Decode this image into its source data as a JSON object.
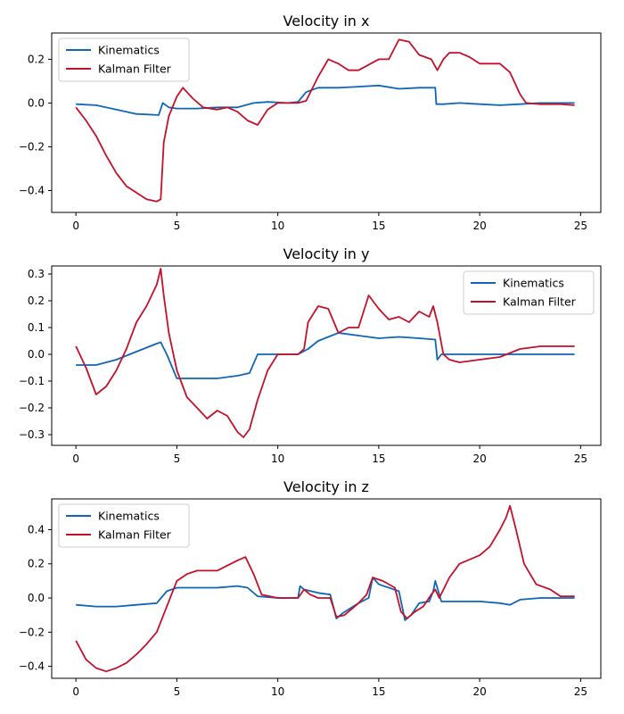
{
  "chart_data": [
    {
      "type": "line",
      "title": "Velocity in x",
      "xlim": [
        -1.2,
        26
      ],
      "ylim": [
        -0.5,
        0.32
      ],
      "xticks": [
        0,
        5,
        10,
        15,
        20,
        25
      ],
      "yticks": [
        -0.4,
        -0.2,
        0.0,
        0.2
      ],
      "ytick_labels": [
        "−0.4",
        "−0.2",
        "0.0",
        "0.2"
      ],
      "legend": "top-left",
      "grid": false,
      "series": [
        {
          "name": "Kinematics",
          "color": "#0f66b8",
          "x": [
            0,
            1,
            2,
            3,
            4.1,
            4.3,
            4.6,
            5,
            6,
            7,
            8,
            8.8,
            9.5,
            10.5,
            11,
            11.4,
            12,
            13,
            14,
            15,
            16,
            17,
            17.8,
            17.85,
            18.2,
            19,
            20,
            21,
            22,
            23,
            24,
            24.7
          ],
          "y": [
            -0.005,
            -0.01,
            -0.03,
            -0.05,
            -0.055,
            0.0,
            -0.02,
            -0.025,
            -0.025,
            -0.02,
            -0.02,
            0.0,
            0.005,
            0.0,
            0.005,
            0.05,
            0.07,
            0.07,
            0.075,
            0.08,
            0.065,
            0.07,
            0.07,
            -0.005,
            -0.005,
            0.0,
            -0.005,
            -0.01,
            -0.005,
            0.0,
            0.0,
            0.0
          ]
        },
        {
          "name": "Kalman Filter",
          "color": "#c4112a",
          "x": [
            0,
            0.5,
            1,
            1.5,
            2,
            2.5,
            3,
            3.5,
            4,
            4.2,
            4.35,
            4.6,
            5,
            5.3,
            5.8,
            6.3,
            7,
            7.5,
            8,
            8.5,
            9,
            9.5,
            10,
            11,
            11.4,
            12,
            12.5,
            13,
            13.5,
            14,
            15,
            15.5,
            16,
            16.5,
            17,
            17.6,
            17.9,
            18.2,
            18.5,
            19,
            19.5,
            20,
            20.5,
            21,
            21.5,
            21.8,
            22,
            22.3,
            23,
            24,
            24.7
          ],
          "y": [
            -0.02,
            -0.08,
            -0.15,
            -0.24,
            -0.32,
            -0.38,
            -0.41,
            -0.44,
            -0.45,
            -0.44,
            -0.18,
            -0.06,
            0.03,
            0.07,
            0.02,
            -0.02,
            -0.03,
            -0.02,
            -0.04,
            -0.08,
            -0.1,
            -0.03,
            0.0,
            0.0,
            0.01,
            0.12,
            0.2,
            0.18,
            0.15,
            0.15,
            0.2,
            0.2,
            0.29,
            0.28,
            0.22,
            0.2,
            0.15,
            0.2,
            0.23,
            0.23,
            0.21,
            0.18,
            0.18,
            0.18,
            0.14,
            0.08,
            0.04,
            0.0,
            -0.005,
            -0.005,
            -0.01
          ]
        }
      ]
    },
    {
      "type": "line",
      "title": "Velocity in y",
      "xlim": [
        -1.2,
        26
      ],
      "ylim": [
        -0.34,
        0.33
      ],
      "xticks": [
        0,
        5,
        10,
        15,
        20,
        25
      ],
      "yticks": [
        -0.3,
        -0.2,
        -0.1,
        0.0,
        0.1,
        0.2,
        0.3
      ],
      "ytick_labels": [
        "−0.3",
        "−0.2",
        "−0.1",
        "0.0",
        "0.1",
        "0.2",
        "0.3"
      ],
      "legend": "top-right",
      "grid": false,
      "series": [
        {
          "name": "Kinematics",
          "color": "#0f66b8",
          "x": [
            0,
            1,
            2,
            3,
            4,
            4.2,
            4.5,
            5,
            5.5,
            6,
            7,
            8,
            8.6,
            9,
            10,
            11,
            11.5,
            12,
            13,
            14,
            15,
            16,
            17,
            17.8,
            17.9,
            18.1,
            19,
            20,
            21,
            22,
            23,
            24,
            24.7
          ],
          "y": [
            -0.04,
            -0.04,
            -0.02,
            0.01,
            0.04,
            0.045,
            0.0,
            -0.09,
            -0.09,
            -0.09,
            -0.09,
            -0.08,
            -0.07,
            0.0,
            0.0,
            0.0,
            0.02,
            0.05,
            0.08,
            0.07,
            0.06,
            0.065,
            0.06,
            0.055,
            -0.02,
            0.0,
            0.0,
            0.0,
            0.0,
            0.0,
            0.0,
            0.0,
            0.0
          ]
        },
        {
          "name": "Kalman Filter",
          "color": "#c4112a",
          "x": [
            0,
            0.5,
            1,
            1.5,
            2,
            2.5,
            3,
            3.5,
            4,
            4.2,
            4.35,
            4.6,
            5,
            5.5,
            6,
            6.5,
            7,
            7.5,
            8,
            8.3,
            8.6,
            9,
            9.5,
            10,
            11,
            11.3,
            11.5,
            12,
            12.5,
            13,
            13.5,
            14,
            14.5,
            15,
            15.5,
            16,
            16.5,
            17,
            17.5,
            17.7,
            17.9,
            18.2,
            18.5,
            19,
            20,
            21,
            22,
            23,
            24,
            24.7
          ],
          "y": [
            0.03,
            -0.05,
            -0.15,
            -0.12,
            -0.06,
            0.02,
            0.12,
            0.18,
            0.26,
            0.32,
            0.22,
            0.08,
            -0.06,
            -0.16,
            -0.2,
            -0.24,
            -0.21,
            -0.23,
            -0.29,
            -0.31,
            -0.28,
            -0.17,
            -0.06,
            0.0,
            0.0,
            0.02,
            0.12,
            0.18,
            0.17,
            0.08,
            0.1,
            0.1,
            0.22,
            0.17,
            0.13,
            0.14,
            0.12,
            0.16,
            0.14,
            0.18,
            0.12,
            0.0,
            -0.02,
            -0.03,
            -0.02,
            -0.01,
            0.02,
            0.03,
            0.03,
            0.03
          ]
        }
      ]
    },
    {
      "type": "line",
      "title": "Velocity in z",
      "xlim": [
        -1.2,
        26
      ],
      "ylim": [
        -0.47,
        0.58
      ],
      "xticks": [
        0,
        5,
        10,
        15,
        20,
        25
      ],
      "yticks": [
        -0.4,
        -0.2,
        0.0,
        0.2,
        0.4
      ],
      "ytick_labels": [
        "−0.4",
        "−0.2",
        "0.0",
        "0.2",
        "0.4"
      ],
      "legend": "top-left",
      "grid": false,
      "series": [
        {
          "name": "Kinematics",
          "color": "#0f66b8",
          "x": [
            0,
            1,
            2,
            3,
            4,
            4.5,
            5,
            6,
            7,
            8,
            8.5,
            9,
            10,
            11,
            11.1,
            11.3,
            12,
            12.6,
            12.9,
            13.2,
            14,
            14.5,
            14.7,
            15,
            15.5,
            16,
            16.3,
            16.6,
            17,
            17.5,
            17.7,
            17.8,
            18.1,
            19,
            20,
            21,
            21.5,
            22,
            23,
            24,
            24.7
          ],
          "y": [
            -0.04,
            -0.05,
            -0.05,
            -0.04,
            -0.03,
            0.04,
            0.06,
            0.06,
            0.06,
            0.07,
            0.06,
            0.01,
            0.0,
            0.0,
            0.07,
            0.05,
            0.03,
            0.02,
            -0.12,
            -0.09,
            -0.03,
            0.0,
            0.12,
            0.08,
            0.06,
            0.04,
            -0.13,
            -0.1,
            -0.03,
            -0.02,
            0.04,
            0.1,
            -0.02,
            -0.02,
            -0.02,
            -0.03,
            -0.04,
            -0.01,
            0.0,
            0.0,
            0.0
          ]
        },
        {
          "name": "Kalman Filter",
          "color": "#c4112a",
          "x": [
            0,
            0.5,
            1,
            1.5,
            2,
            2.5,
            3,
            3.5,
            4,
            4.5,
            5,
            5.5,
            6,
            7,
            8,
            8.4,
            8.8,
            9.2,
            10,
            11,
            11.3,
            11.6,
            12,
            12.6,
            12.9,
            13.3,
            14,
            14.4,
            14.7,
            15.2,
            15.8,
            16.1,
            16.4,
            16.8,
            17.2,
            17.6,
            17.8,
            18,
            18.5,
            19,
            20,
            20.5,
            21,
            21.3,
            21.5,
            21.8,
            22.2,
            22.8,
            23.5,
            24,
            24.7
          ],
          "y": [
            -0.25,
            -0.36,
            -0.41,
            -0.43,
            -0.41,
            -0.38,
            -0.33,
            -0.27,
            -0.2,
            -0.05,
            0.1,
            0.14,
            0.16,
            0.16,
            0.22,
            0.24,
            0.14,
            0.02,
            0.0,
            0.0,
            0.05,
            0.02,
            0.0,
            0.0,
            -0.11,
            -0.1,
            -0.03,
            0.02,
            0.12,
            0.1,
            0.06,
            -0.08,
            -0.12,
            -0.08,
            -0.05,
            0.02,
            0.05,
            0.0,
            0.12,
            0.2,
            0.25,
            0.3,
            0.4,
            0.47,
            0.54,
            0.4,
            0.2,
            0.08,
            0.05,
            0.01,
            0.01
          ]
        }
      ]
    }
  ]
}
